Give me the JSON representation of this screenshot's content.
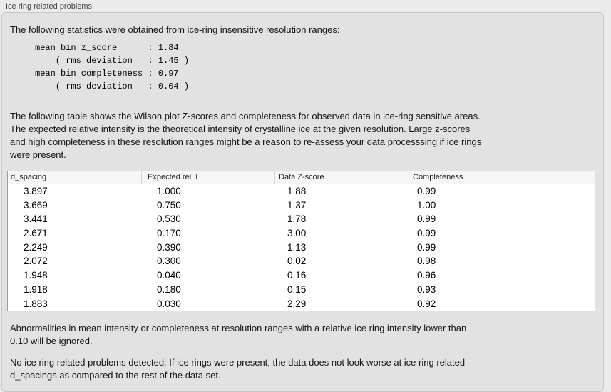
{
  "colors": {
    "page_bg": "#ebebeb",
    "panel_bg": "#e2e2e2",
    "panel_border": "#c8c8c8",
    "table_border": "#9c9c9c",
    "table_header_bg": "#f6f6f6",
    "table_body_bg": "#ffffff",
    "text": "#141414"
  },
  "panel": {
    "title": "Ice ring related problems",
    "intro": "The following statistics were obtained from ice-ring insensitive resolution ranges:",
    "stats_block": "mean bin z_score      : 1.84\n    ( rms deviation   : 1.45 )\nmean bin completeness : 0.97\n    ( rms deviation   : 0.04 )",
    "table_description": "The following table shows the Wilson plot Z-scores and completeness for observed data in ice-ring sensitive areas.\nThe expected relative intensity is the theoretical intensity of crystalline ice at the given resolution. Large z-scores\nand high completeness in these resolution ranges might be a reason to re-assess your data processsing if ice rings\nwere present.",
    "ignore_note": "Abnormalities in mean intensity or completeness at resolution ranges with a relative ice ring intensity lower than\n0.10 will be ignored.",
    "conclusion": "No ice ring related problems detected. If ice rings were present, the data does not look worse at ice ring related\nd_spacings as compared to the rest of the data set."
  },
  "table": {
    "headers": [
      "d_spacing",
      "Expected rel. I",
      "Data Z-score",
      "Completeness"
    ],
    "rows": [
      [
        "3.897",
        "1.000",
        "1.88",
        "0.99"
      ],
      [
        "3.669",
        "0.750",
        "1.37",
        "1.00"
      ],
      [
        "3.441",
        "0.530",
        "1.78",
        "0.99"
      ],
      [
        "2.671",
        "0.170",
        "3.00",
        "0.99"
      ],
      [
        "2.249",
        "0.390",
        "1.13",
        "0.99"
      ],
      [
        "2.072",
        "0.300",
        "0.02",
        "0.98"
      ],
      [
        "1.948",
        "0.040",
        "0.16",
        "0.96"
      ],
      [
        "1.918",
        "0.180",
        "0.15",
        "0.93"
      ],
      [
        "1.883",
        "0.030",
        "2.29",
        "0.92"
      ]
    ]
  }
}
